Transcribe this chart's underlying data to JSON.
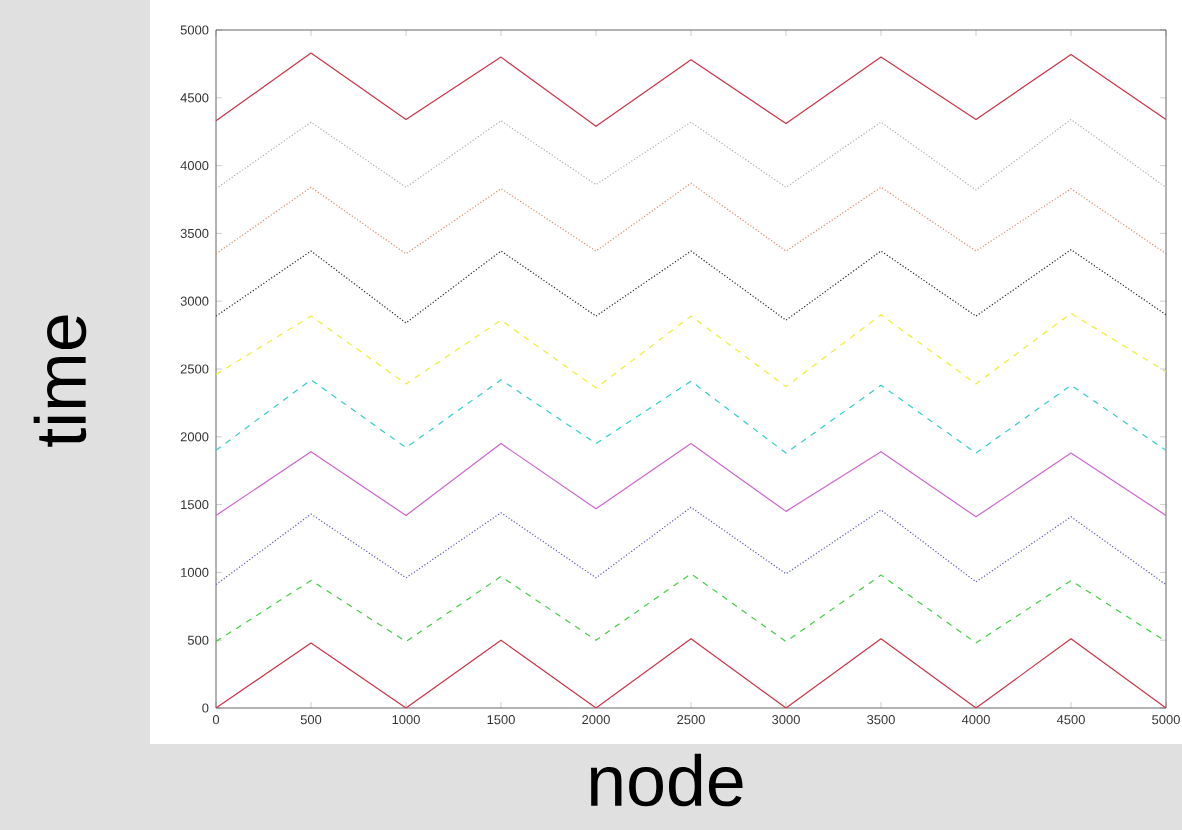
{
  "chart_data": {
    "type": "line",
    "xlabel": "node",
    "ylabel": "time",
    "x": [
      0,
      500,
      1000,
      1500,
      2000,
      2500,
      3000,
      3500,
      4000,
      4500,
      5000
    ],
    "xlim": [
      0,
      5000
    ],
    "ylim": [
      0,
      5000
    ],
    "xticks": [
      0,
      500,
      1000,
      1500,
      2000,
      2500,
      3000,
      3500,
      4000,
      4500,
      5000
    ],
    "yticks": [
      0,
      500,
      1000,
      1500,
      2000,
      2500,
      3000,
      3500,
      4000,
      4500,
      5000
    ],
    "series": [
      {
        "color": "#cc3344",
        "line_style": "solid",
        "values": [
          0,
          480,
          0,
          500,
          0,
          510,
          0,
          510,
          0,
          510,
          0
        ]
      },
      {
        "color": "#44cc44",
        "line_style": "dashed",
        "values": [
          490,
          940,
          490,
          970,
          500,
          990,
          490,
          980,
          480,
          940,
          490
        ]
      },
      {
        "color": "#5555bb",
        "line_style": "dotted",
        "values": [
          910,
          1430,
          960,
          1440,
          960,
          1480,
          990,
          1460,
          930,
          1410,
          910
        ]
      },
      {
        "color": "#cc66cc",
        "line_style": "solid",
        "values": [
          1420,
          1890,
          1420,
          1950,
          1470,
          1950,
          1450,
          1890,
          1410,
          1880,
          1420
        ]
      },
      {
        "color": "#33cccc",
        "line_style": "dashed",
        "values": [
          1900,
          2420,
          1920,
          2420,
          1950,
          2410,
          1880,
          2380,
          1880,
          2380,
          1900
        ]
      },
      {
        "color": "#eeee33",
        "line_style": "dashed",
        "values": [
          2460,
          2890,
          2390,
          2860,
          2360,
          2890,
          2370,
          2900,
          2390,
          2910,
          2480
        ]
      },
      {
        "color": "#222222",
        "line_style": "dotted",
        "values": [
          2890,
          3370,
          2840,
          3370,
          2890,
          3370,
          2860,
          3370,
          2890,
          3380,
          2900
        ]
      },
      {
        "color": "#dd8866",
        "line_style": "dotted",
        "values": [
          3350,
          3840,
          3350,
          3830,
          3370,
          3870,
          3370,
          3840,
          3370,
          3830,
          3350
        ]
      },
      {
        "color": "#aaaaaa",
        "line_style": "dotted",
        "values": [
          3830,
          4320,
          3840,
          4330,
          3860,
          4320,
          3840,
          4320,
          3820,
          4340,
          3840
        ]
      },
      {
        "color": "#cc3344",
        "line_style": "solid",
        "values": [
          4330,
          4830,
          4340,
          4800,
          4290,
          4780,
          4310,
          4800,
          4340,
          4820,
          4340
        ]
      }
    ]
  }
}
